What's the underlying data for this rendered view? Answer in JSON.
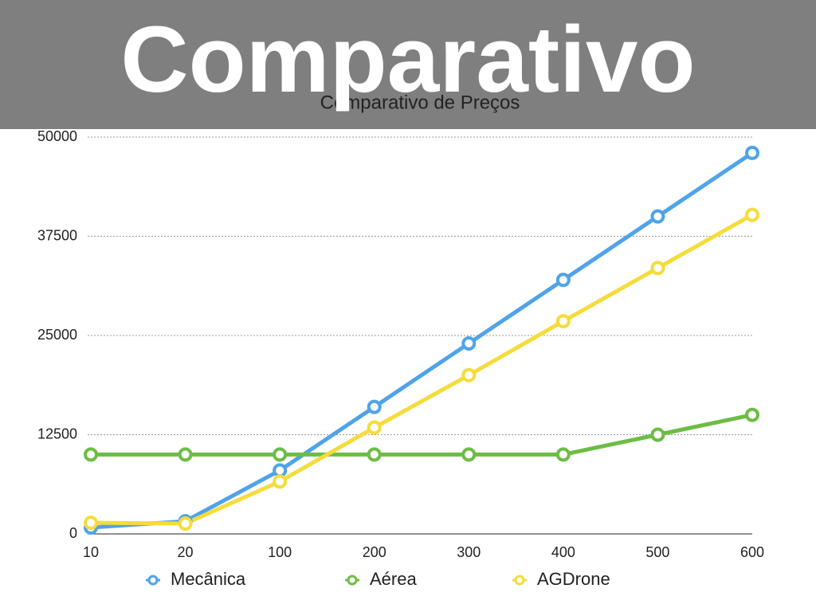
{
  "banner": "Comparativo",
  "chart_data": {
    "type": "line",
    "title": "Comparativo de Preços",
    "categories": [
      "10",
      "20",
      "100",
      "200",
      "300",
      "400",
      "500",
      "600"
    ],
    "series": [
      {
        "name": "Mecânica",
        "color": "#4fa3ea",
        "values": [
          800,
          1600,
          8000,
          16000,
          24000,
          32000,
          40000,
          48000
        ]
      },
      {
        "name": "Aérea",
        "color": "#6cbd45",
        "values": [
          10000,
          10000,
          10000,
          10000,
          10000,
          10000,
          12500,
          15000
        ]
      },
      {
        "name": "AGDrone",
        "color": "#f5dc3a",
        "values": [
          1400,
          1300,
          6600,
          13400,
          20000,
          26800,
          33500,
          40200
        ]
      }
    ],
    "ylim": [
      0,
      50000
    ],
    "yticks": [
      0,
      12500,
      25000,
      37500,
      50000
    ],
    "grid": true,
    "legend": "bottom"
  }
}
